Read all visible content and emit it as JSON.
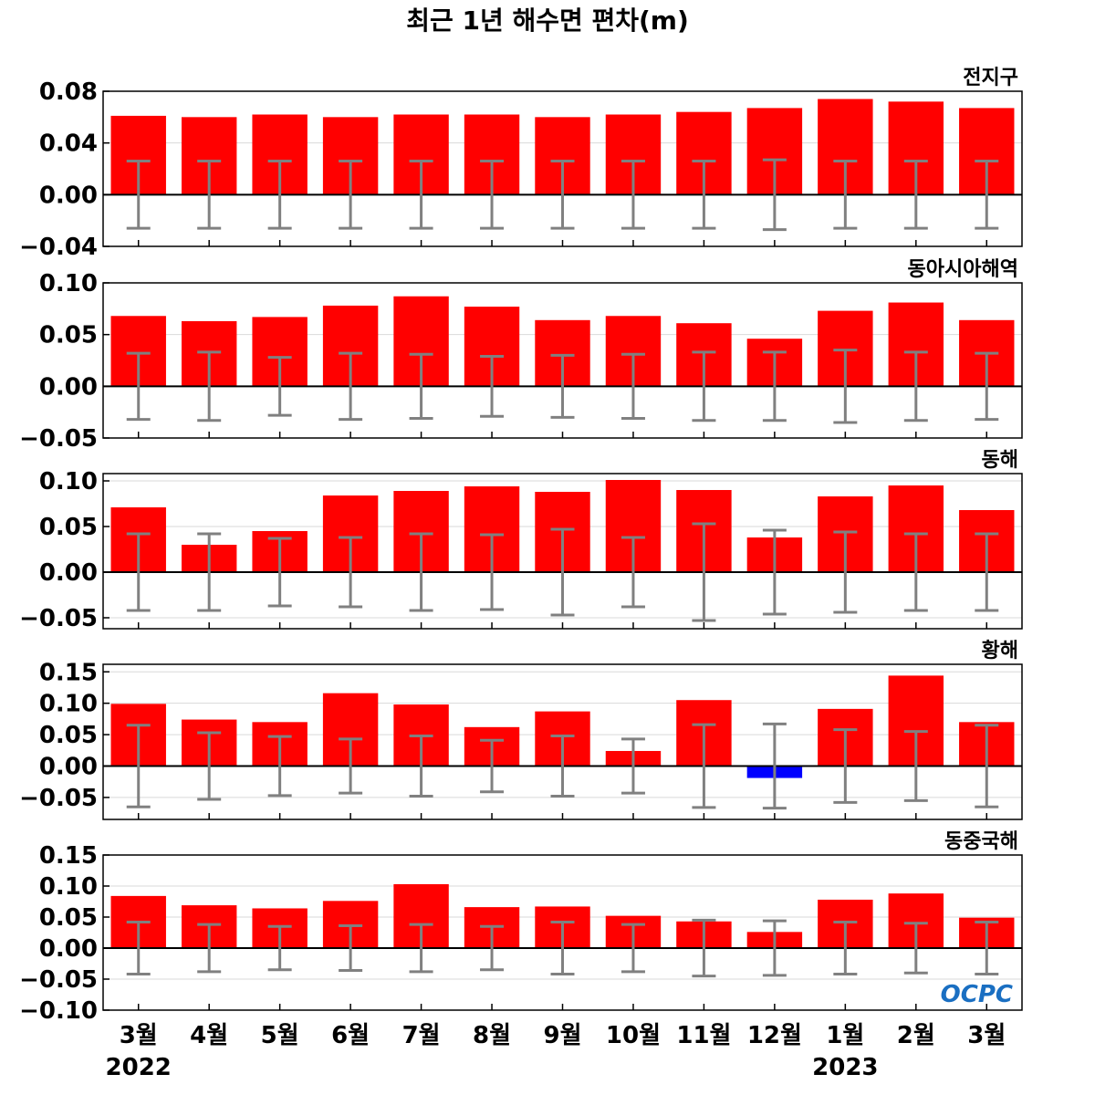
{
  "chart_data": {
    "type": "bar",
    "title": "최근 1년 해수면 편차(m)",
    "categories": [
      "3월",
      "4월",
      "5월",
      "6월",
      "7월",
      "8월",
      "9월",
      "10월",
      "11월",
      "12월",
      "1월",
      "2월",
      "3월"
    ],
    "year_labels": [
      {
        "index": 0,
        "text": "2022"
      },
      {
        "index": 10,
        "text": "2023"
      }
    ],
    "logo_text": "OCPC",
    "colors": {
      "positive": "#ff0000",
      "negative": "#0000ff",
      "error_bar": "#808080",
      "zero_line": "#000000",
      "grid": "#d9d9d9"
    },
    "grid": true,
    "panels": [
      {
        "name": "전지구",
        "ylim": [
          -0.04,
          0.08
        ],
        "yticks": [
          -0.04,
          0.0,
          0.04,
          0.08
        ],
        "ytick_labels": [
          "−0.04",
          "0.00",
          "0.04",
          "0.08"
        ],
        "values": [
          0.061,
          0.06,
          0.062,
          0.06,
          0.062,
          0.062,
          0.06,
          0.062,
          0.064,
          0.067,
          0.074,
          0.072,
          0.067
        ],
        "error": [
          0.026,
          0.026,
          0.026,
          0.026,
          0.026,
          0.026,
          0.026,
          0.026,
          0.026,
          0.027,
          0.026,
          0.026,
          0.026
        ]
      },
      {
        "name": "동아시아해역",
        "ylim": [
          -0.05,
          0.1
        ],
        "yticks": [
          -0.05,
          0.0,
          0.05,
          0.1
        ],
        "ytick_labels": [
          "−0.05",
          "0.00",
          "0.05",
          "0.10"
        ],
        "values": [
          0.068,
          0.063,
          0.067,
          0.078,
          0.087,
          0.077,
          0.064,
          0.068,
          0.061,
          0.046,
          0.073,
          0.081,
          0.064
        ],
        "error": [
          0.032,
          0.033,
          0.028,
          0.032,
          0.031,
          0.029,
          0.03,
          0.031,
          0.033,
          0.033,
          0.035,
          0.033,
          0.032
        ]
      },
      {
        "name": "동해",
        "ylim": [
          -0.062,
          0.108
        ],
        "yticks": [
          -0.05,
          0.0,
          0.05,
          0.1
        ],
        "ytick_labels": [
          "−0.05",
          "0.00",
          "0.05",
          "0.10"
        ],
        "values": [
          0.071,
          0.03,
          0.045,
          0.084,
          0.089,
          0.094,
          0.088,
          0.101,
          0.09,
          0.038,
          0.083,
          0.095,
          0.068
        ],
        "error": [
          0.042,
          0.042,
          0.037,
          0.038,
          0.042,
          0.041,
          0.047,
          0.038,
          0.053,
          0.046,
          0.044,
          0.042,
          0.042
        ]
      },
      {
        "name": "황해",
        "ylim": [
          -0.085,
          0.162
        ],
        "yticks": [
          -0.05,
          0.0,
          0.05,
          0.1,
          0.15
        ],
        "ytick_labels": [
          "−0.05",
          "0.00",
          "0.05",
          "0.10",
          "0.15"
        ],
        "values": [
          0.099,
          0.074,
          0.07,
          0.116,
          0.098,
          0.062,
          0.087,
          0.024,
          0.105,
          -0.019,
          0.091,
          0.144,
          0.07
        ],
        "error": [
          0.065,
          0.053,
          0.047,
          0.043,
          0.048,
          0.041,
          0.048,
          0.043,
          0.066,
          0.067,
          0.058,
          0.055,
          0.065
        ]
      },
      {
        "name": "동중국해",
        "ylim": [
          -0.1,
          0.15
        ],
        "yticks": [
          -0.1,
          -0.05,
          0.0,
          0.05,
          0.1,
          0.15
        ],
        "ytick_labels": [
          "−0.10",
          "−0.05",
          "0.00",
          "0.05",
          "0.10",
          "0.15"
        ],
        "values": [
          0.084,
          0.069,
          0.064,
          0.076,
          0.103,
          0.066,
          0.067,
          0.052,
          0.043,
          0.026,
          0.078,
          0.088,
          0.049
        ],
        "error": [
          0.042,
          0.038,
          0.035,
          0.036,
          0.038,
          0.035,
          0.042,
          0.038,
          0.045,
          0.044,
          0.042,
          0.04,
          0.042
        ]
      }
    ]
  }
}
